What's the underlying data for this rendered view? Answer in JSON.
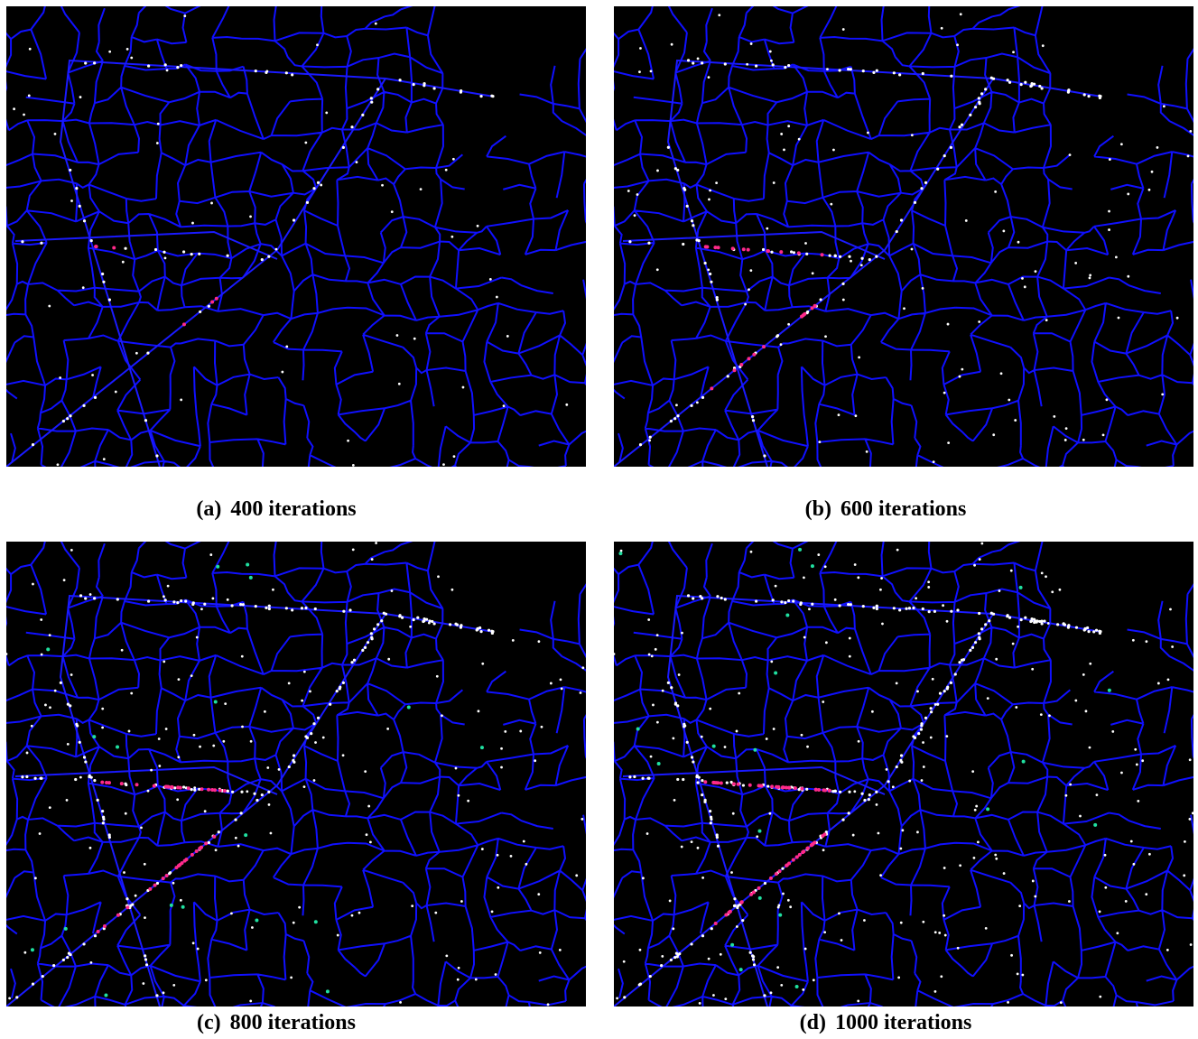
{
  "panels": [
    {
      "label": "(a)",
      "caption": "400 iterations"
    },
    {
      "label": "(b)",
      "caption": "600 iterations"
    },
    {
      "label": "(c)",
      "caption": "800 iterations"
    },
    {
      "label": "(d)",
      "caption": "1000 iterations"
    }
  ]
}
